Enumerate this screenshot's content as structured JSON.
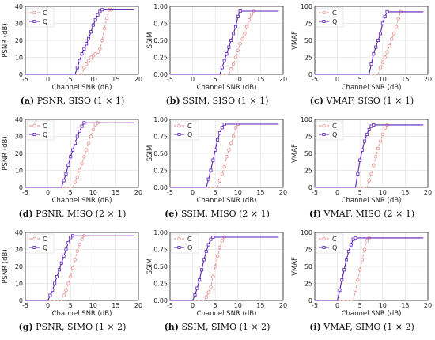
{
  "figure": {
    "charts": [
      {
        "caption_prefix": "(a)",
        "caption_text": "PSNR, SISO (1 × 1)"
      },
      {
        "caption_prefix": "(b)",
        "caption_text": "SSIM, SISO (1 × 1)"
      },
      {
        "caption_prefix": "(c)",
        "caption_text": "VMAF, SISO (1 × 1)"
      },
      {
        "caption_prefix": "(d)",
        "caption_text": "PSNR, MISO (2 × 1)"
      },
      {
        "caption_prefix": "(e)",
        "caption_text": "SSIM, MISO (2 × 1)"
      },
      {
        "caption_prefix": "(f)",
        "caption_text": "VMAF, MISO (2 × 1)"
      },
      {
        "caption_prefix": "(g)",
        "caption_text": "PSNR, SIMO (1 × 2)"
      },
      {
        "caption_prefix": "(h)",
        "caption_text": "SSIM, SIMO (1 × 2)"
      },
      {
        "caption_prefix": "(i)",
        "caption_text": "VMAF, SIMO (1 × 2)"
      }
    ]
  },
  "chart_data": [
    {
      "type": "line",
      "xlabel": "Channel SNR (dB)",
      "ylabel": "PSNR (dB)",
      "xlim": [
        -5,
        20
      ],
      "ylim": [
        0,
        40
      ],
      "xticks": [
        -5,
        0,
        5,
        10,
        15,
        20
      ],
      "yticks": [
        0,
        10,
        20,
        30,
        40
      ],
      "ytick_labels": [
        "0",
        "10",
        "20",
        "30",
        "40"
      ],
      "legend_position": "top-left",
      "series": [
        {
          "name": "C",
          "color": "#e58a8a",
          "dashed": true,
          "marker": "circle",
          "x": [
            -5,
            7.5,
            8,
            8.5,
            9,
            9.5,
            10,
            10.5,
            11,
            11.5,
            12,
            12.5,
            13,
            13.5,
            14,
            19
          ],
          "y": [
            0,
            0,
            4,
            6,
            8,
            10,
            11,
            12,
            13,
            15,
            20,
            27,
            33,
            38,
            38,
            38
          ]
        },
        {
          "name": "Q",
          "color": "#5a1db5",
          "dashed": false,
          "marker": "square",
          "x": [
            -5,
            6,
            6.5,
            7,
            7.5,
            8,
            8.5,
            9,
            9.5,
            10,
            10.5,
            11,
            11.5,
            12,
            19
          ],
          "y": [
            0,
            0,
            4,
            8,
            12,
            15,
            18,
            21,
            25,
            29,
            32,
            35,
            37,
            38,
            38
          ]
        }
      ]
    },
    {
      "type": "line",
      "xlabel": "Channel SNR (dB)",
      "ylabel": "SSIM",
      "xlim": [
        -5,
        20
      ],
      "ylim": [
        0,
        1
      ],
      "xticks": [
        -5,
        0,
        5,
        10,
        15,
        20
      ],
      "yticks": [
        0,
        0.25,
        0.5,
        0.75,
        1
      ],
      "ytick_labels": [
        "0.00",
        "0.25",
        "0.50",
        "0.75",
        "1.00"
      ],
      "legend_position": "none",
      "series": [
        {
          "name": "C",
          "color": "#e58a8a",
          "dashed": true,
          "marker": "circle",
          "x": [
            -5,
            8,
            8.5,
            9,
            9.5,
            10,
            10.5,
            11,
            11.5,
            12,
            12.5,
            13,
            13.5,
            19
          ],
          "y": [
            0,
            0,
            0.08,
            0.15,
            0.25,
            0.35,
            0.45,
            0.52,
            0.6,
            0.7,
            0.8,
            0.88,
            0.93,
            0.93
          ]
        },
        {
          "name": "Q",
          "color": "#5a1db5",
          "dashed": false,
          "marker": "square",
          "x": [
            -5,
            6,
            6.5,
            7,
            7.5,
            8,
            8.5,
            9,
            9.5,
            10,
            10.5,
            19
          ],
          "y": [
            0,
            0,
            0.1,
            0.2,
            0.3,
            0.4,
            0.5,
            0.6,
            0.7,
            0.85,
            0.93,
            0.93
          ]
        }
      ]
    },
    {
      "type": "line",
      "xlabel": "Channel SNR (dB)",
      "ylabel": "VMAF",
      "xlim": [
        -5,
        20
      ],
      "ylim": [
        0,
        100
      ],
      "xticks": [
        -5,
        0,
        5,
        10,
        15,
        20
      ],
      "yticks": [
        0,
        25,
        50,
        75,
        100
      ],
      "ytick_labels": [
        "0",
        "25",
        "50",
        "75",
        "100"
      ],
      "legend_position": "top-left",
      "series": [
        {
          "name": "C",
          "color": "#e58a8a",
          "dashed": true,
          "marker": "circle",
          "x": [
            -5,
            9,
            9.5,
            10,
            10.5,
            11,
            11.5,
            12,
            12.5,
            13,
            13.5,
            14,
            19
          ],
          "y": [
            0,
            0,
            10,
            18,
            25,
            33,
            42,
            52,
            60,
            70,
            82,
            92,
            92
          ]
        },
        {
          "name": "Q",
          "color": "#5a1db5",
          "dashed": false,
          "marker": "square",
          "x": [
            -5,
            7,
            7.5,
            8,
            8.5,
            9,
            9.5,
            10,
            10.5,
            11,
            19
          ],
          "y": [
            0,
            0,
            15,
            30,
            40,
            50,
            60,
            75,
            85,
            92,
            92
          ]
        }
      ]
    },
    {
      "type": "line",
      "xlabel": "Channel SNR (dB)",
      "ylabel": "PSNR (dB)",
      "xlim": [
        -5,
        20
      ],
      "ylim": [
        0,
        40
      ],
      "xticks": [
        -5,
        0,
        5,
        10,
        15,
        20
      ],
      "yticks": [
        0,
        10,
        20,
        30,
        40
      ],
      "ytick_labels": [
        "0",
        "10",
        "20",
        "30",
        "40"
      ],
      "legend_position": "top-left",
      "series": [
        {
          "name": "C",
          "color": "#e58a8a",
          "dashed": true,
          "marker": "circle",
          "x": [
            -5,
            5.5,
            6,
            6.5,
            7,
            7.5,
            8,
            8.5,
            9,
            9.5,
            10,
            10.5,
            11,
            19
          ],
          "y": [
            0,
            0,
            3,
            6,
            10,
            14,
            18,
            22,
            26,
            30,
            34,
            37,
            38,
            38
          ]
        },
        {
          "name": "Q",
          "color": "#5a1db5",
          "dashed": false,
          "marker": "square",
          "x": [
            -5,
            3,
            3.5,
            4,
            4.5,
            5,
            5.5,
            6,
            6.5,
            7,
            7.5,
            8,
            19
          ],
          "y": [
            0,
            0,
            4,
            8,
            13,
            18,
            22,
            26,
            30,
            33,
            36,
            38,
            38
          ]
        }
      ]
    },
    {
      "type": "line",
      "xlabel": "Channel SNR (dB)",
      "ylabel": "SSIM",
      "xlim": [
        -5,
        20
      ],
      "ylim": [
        0,
        1
      ],
      "xticks": [
        -5,
        0,
        5,
        10,
        15,
        20
      ],
      "yticks": [
        0,
        0.25,
        0.5,
        0.75,
        1
      ],
      "ytick_labels": [
        "0.00",
        "0.25",
        "0.50",
        "0.75",
        "1.00"
      ],
      "legend_position": "top-left",
      "series": [
        {
          "name": "C",
          "color": "#e58a8a",
          "dashed": true,
          "marker": "circle",
          "x": [
            -5,
            5.5,
            6,
            6.5,
            7,
            7.5,
            8,
            8.5,
            9,
            9.5,
            10,
            19
          ],
          "y": [
            0,
            0,
            0.1,
            0.2,
            0.3,
            0.45,
            0.55,
            0.65,
            0.75,
            0.88,
            0.93,
            0.93
          ]
        },
        {
          "name": "Q",
          "color": "#5a1db5",
          "dashed": false,
          "marker": "square",
          "x": [
            -5,
            3,
            3.5,
            4,
            4.5,
            5,
            5.5,
            6,
            6.5,
            7,
            19
          ],
          "y": [
            0,
            0,
            0.12,
            0.25,
            0.4,
            0.55,
            0.7,
            0.8,
            0.88,
            0.93,
            0.93
          ]
        }
      ]
    },
    {
      "type": "line",
      "xlabel": "Channel SNR (dB)",
      "ylabel": "VMAF",
      "xlim": [
        -5,
        20
      ],
      "ylim": [
        0,
        100
      ],
      "xticks": [
        -5,
        0,
        5,
        10,
        15,
        20
      ],
      "yticks": [
        0,
        25,
        50,
        75,
        100
      ],
      "ytick_labels": [
        "0",
        "25",
        "50",
        "75",
        "100"
      ],
      "legend_position": "top-left",
      "series": [
        {
          "name": "C",
          "color": "#e58a8a",
          "dashed": true,
          "marker": "circle",
          "x": [
            -5,
            6.5,
            7,
            7.5,
            8,
            8.5,
            9,
            9.5,
            10,
            10.5,
            11,
            19
          ],
          "y": [
            0,
            0,
            10,
            20,
            32,
            45,
            57,
            68,
            78,
            87,
            92,
            92
          ]
        },
        {
          "name": "Q",
          "color": "#5a1db5",
          "dashed": false,
          "marker": "square",
          "x": [
            -5,
            4,
            4.5,
            5,
            5.5,
            6,
            6.5,
            7,
            7.5,
            8,
            19
          ],
          "y": [
            0,
            0,
            20,
            40,
            55,
            68,
            78,
            85,
            90,
            92,
            92
          ]
        }
      ]
    },
    {
      "type": "line",
      "xlabel": "Channel SNR (dB)",
      "ylabel": "PSNR (dB)",
      "xlim": [
        -5,
        20
      ],
      "ylim": [
        0,
        40
      ],
      "xticks": [
        -5,
        0,
        5,
        10,
        15,
        20
      ],
      "yticks": [
        0,
        10,
        20,
        30,
        40
      ],
      "ytick_labels": [
        "0",
        "10",
        "20",
        "30",
        "40"
      ],
      "legend_position": "top-left",
      "series": [
        {
          "name": "C",
          "color": "#e58a8a",
          "dashed": true,
          "marker": "circle",
          "x": [
            -5,
            3,
            3.5,
            4,
            4.5,
            5,
            5.5,
            6,
            6.5,
            7,
            7.5,
            8,
            19
          ],
          "y": [
            0,
            0,
            3,
            6,
            10,
            14,
            19,
            24,
            29,
            33,
            36,
            38,
            38
          ]
        },
        {
          "name": "Q",
          "color": "#5a1db5",
          "dashed": false,
          "marker": "square",
          "x": [
            -5,
            0,
            0.5,
            1,
            1.5,
            2,
            2.5,
            3,
            3.5,
            4,
            4.5,
            5,
            5.5,
            19
          ],
          "y": [
            0,
            0,
            3,
            6,
            10,
            14,
            18,
            22,
            26,
            30,
            34,
            37,
            38,
            38
          ]
        }
      ]
    },
    {
      "type": "line",
      "xlabel": "Channel SNR (dB)",
      "ylabel": "SSIM",
      "xlim": [
        -5,
        20
      ],
      "ylim": [
        0,
        1
      ],
      "xticks": [
        -5,
        0,
        5,
        10,
        15,
        20
      ],
      "yticks": [
        0,
        0.25,
        0.5,
        0.75,
        1
      ],
      "ytick_labels": [
        "0.00",
        "0.25",
        "0.50",
        "0.75",
        "1.00"
      ],
      "legend_position": "top-left",
      "series": [
        {
          "name": "C",
          "color": "#e58a8a",
          "dashed": true,
          "marker": "circle",
          "x": [
            -5,
            2.5,
            3,
            3.5,
            4,
            4.5,
            5,
            5.5,
            6,
            6.5,
            7,
            19
          ],
          "y": [
            0,
            0,
            0.05,
            0.12,
            0.2,
            0.35,
            0.5,
            0.65,
            0.78,
            0.88,
            0.93,
            0.93
          ]
        },
        {
          "name": "Q",
          "color": "#5a1db5",
          "dashed": false,
          "marker": "square",
          "x": [
            -5,
            0,
            0.5,
            1,
            1.5,
            2,
            2.5,
            3,
            3.5,
            4,
            4.5,
            19
          ],
          "y": [
            0,
            0,
            0.08,
            0.18,
            0.3,
            0.45,
            0.6,
            0.72,
            0.82,
            0.9,
            0.93,
            0.93
          ]
        }
      ]
    },
    {
      "type": "line",
      "xlabel": "Channel SNR (dB)",
      "ylabel": "VMAF",
      "xlim": [
        -5,
        20
      ],
      "ylim": [
        0,
        100
      ],
      "xticks": [
        -5,
        0,
        5,
        10,
        15,
        20
      ],
      "yticks": [
        0,
        25,
        50,
        75,
        100
      ],
      "ytick_labels": [
        "0",
        "25",
        "50",
        "75",
        "100"
      ],
      "legend_position": "top-left",
      "series": [
        {
          "name": "C",
          "color": "#e58a8a",
          "dashed": true,
          "marker": "circle",
          "x": [
            -5,
            3.5,
            4,
            4.5,
            5,
            5.5,
            6,
            6.5,
            7,
            19
          ],
          "y": [
            0,
            0,
            15,
            30,
            45,
            60,
            75,
            88,
            92,
            92
          ]
        },
        {
          "name": "Q",
          "color": "#5a1db5",
          "dashed": false,
          "marker": "square",
          "x": [
            -5,
            0,
            0.5,
            1,
            1.5,
            2,
            2.5,
            3,
            3.5,
            4,
            19
          ],
          "y": [
            0,
            0,
            15,
            30,
            45,
            60,
            72,
            82,
            90,
            92,
            92
          ]
        }
      ]
    }
  ]
}
